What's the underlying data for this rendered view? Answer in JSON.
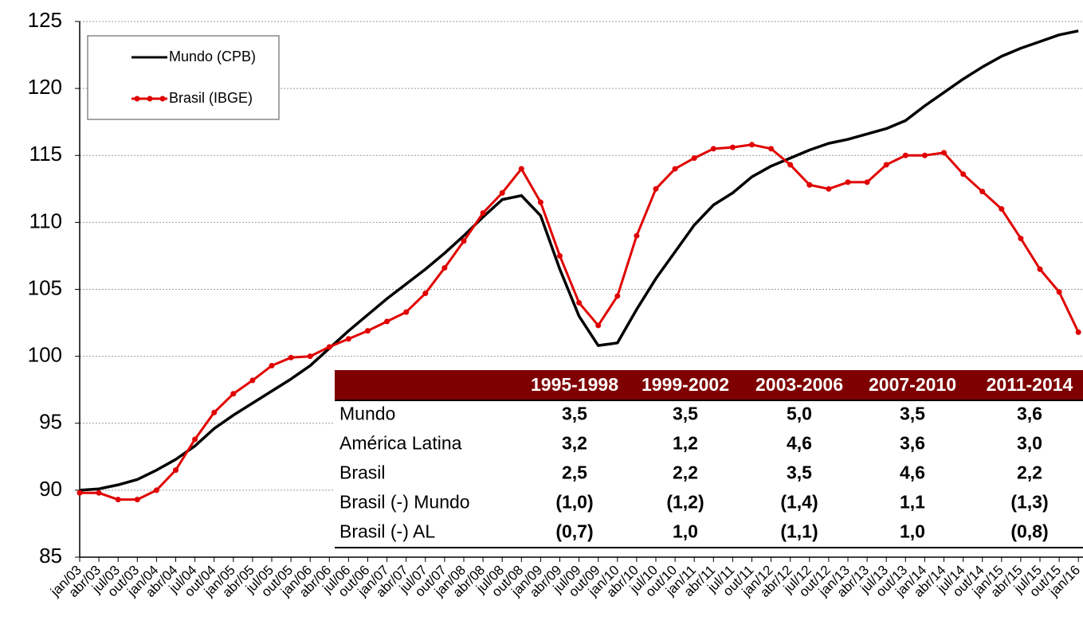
{
  "chart_data": {
    "type": "line",
    "categories": [
      "jan/03",
      "abr/03",
      "jul/03",
      "out/03",
      "jan/04",
      "abr/04",
      "jul/04",
      "out/04",
      "jan/05",
      "abr/05",
      "jul/05",
      "out/05",
      "jan/06",
      "abr/06",
      "jul/06",
      "out/06",
      "jan/07",
      "abr/07",
      "jul/07",
      "out/07",
      "jan/08",
      "abr/08",
      "jul/08",
      "out/08",
      "jan/09",
      "abr/09",
      "jul/09",
      "out/09",
      "jan/10",
      "abr/10",
      "jul/10",
      "out/10",
      "jan/11",
      "abr/11",
      "jul/11",
      "out/11",
      "jan/12",
      "abr/12",
      "jul/12",
      "out/12",
      "jan/13",
      "abr/13",
      "jul/13",
      "out/13",
      "jan/14",
      "abr/14",
      "jul/14",
      "out/14",
      "jan/15",
      "abr/15",
      "jul/15",
      "out/15",
      "jan/16"
    ],
    "series": [
      {
        "name": "Mundo (CPB)",
        "color": "#000000",
        "marker": false,
        "values": [
          90.0,
          90.1,
          90.4,
          90.8,
          91.5,
          92.3,
          93.3,
          94.6,
          95.6,
          96.5,
          97.4,
          98.3,
          99.3,
          100.6,
          101.9,
          103.1,
          104.3,
          105.4,
          106.5,
          107.7,
          109.0,
          110.4,
          111.7,
          112.0,
          110.5,
          106.5,
          103.0,
          100.8,
          101.0,
          103.5,
          105.8,
          107.8,
          109.8,
          111.3,
          112.2,
          113.4,
          114.2,
          114.8,
          115.4,
          115.9,
          116.2,
          116.6,
          117.0,
          117.6,
          118.7,
          119.7,
          120.7,
          121.6,
          122.4,
          123.0,
          123.5,
          124.0,
          124.3
        ]
      },
      {
        "name": "Brasil (IBGE)",
        "color": "#e00000",
        "marker": true,
        "values": [
          89.8,
          89.8,
          89.3,
          89.3,
          90.0,
          91.5,
          93.8,
          95.8,
          97.2,
          98.2,
          99.3,
          99.9,
          100.0,
          100.7,
          101.3,
          101.9,
          102.6,
          103.3,
          104.7,
          106.6,
          108.6,
          110.7,
          112.2,
          114.0,
          111.5,
          107.5,
          104.0,
          102.3,
          104.5,
          109.0,
          112.5,
          114.0,
          114.8,
          115.5,
          115.6,
          115.8,
          115.5,
          114.3,
          112.8,
          112.5,
          113.0,
          113.0,
          114.3,
          115.0,
          115.0,
          115.2,
          113.6,
          112.3,
          111.0,
          108.8,
          106.5,
          104.8,
          101.8
        ]
      }
    ],
    "ylim": [
      85,
      125
    ],
    "yticks": [
      85,
      90,
      95,
      100,
      105,
      110,
      115,
      120,
      125
    ],
    "grid": true,
    "legend": "top-left"
  },
  "table": {
    "columns": [
      "1995-1998",
      "1999-2002",
      "2003-2006",
      "2007-2010",
      "2011-2014"
    ],
    "rows": [
      [
        "Mundo",
        "3,5",
        "3,5",
        "5,0",
        "3,5",
        "3,6"
      ],
      [
        "América Latina",
        "3,2",
        "1,2",
        "4,6",
        "3,6",
        "3,0"
      ],
      [
        "Brasil",
        "2,5",
        "2,2",
        "3,5",
        "4,6",
        "2,2"
      ],
      [
        "Brasil (-) Mundo",
        "(1,0)",
        "(1,2)",
        "(1,4)",
        "1,1",
        "(1,3)"
      ],
      [
        "Brasil (-) AL",
        "(0,7)",
        "1,0",
        "(1,1)",
        "1,0",
        "(0,8)"
      ]
    ]
  }
}
